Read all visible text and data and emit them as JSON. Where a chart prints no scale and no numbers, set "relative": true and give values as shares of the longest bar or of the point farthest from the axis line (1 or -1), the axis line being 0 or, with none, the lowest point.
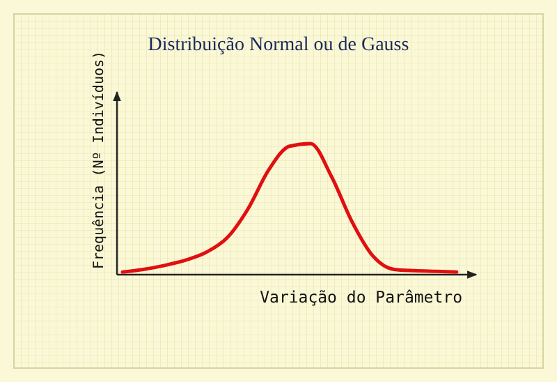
{
  "chart_data": {
    "type": "line",
    "title": "Distribuição Normal ou de Gauss",
    "xlabel": "Variação do Parâmetro",
    "ylabel": "Frequência (Nº Indivíduos)",
    "relative": true,
    "categories": [
      null,
      null,
      null,
      null,
      null,
      null,
      null,
      null,
      null,
      null,
      null,
      null,
      null,
      null,
      null,
      null,
      null
    ],
    "series": [
      {
        "color": "#e01010",
        "values": [
          0.02,
          0.04,
          0.07,
          0.11,
          0.17,
          0.28,
          0.5,
          0.8,
          0.98,
          1.0,
          0.75,
          0.4,
          0.14,
          0.04,
          0.03,
          0.025,
          0.02
        ]
      }
    ],
    "marker": "none",
    "line_style": "solid"
  }
}
